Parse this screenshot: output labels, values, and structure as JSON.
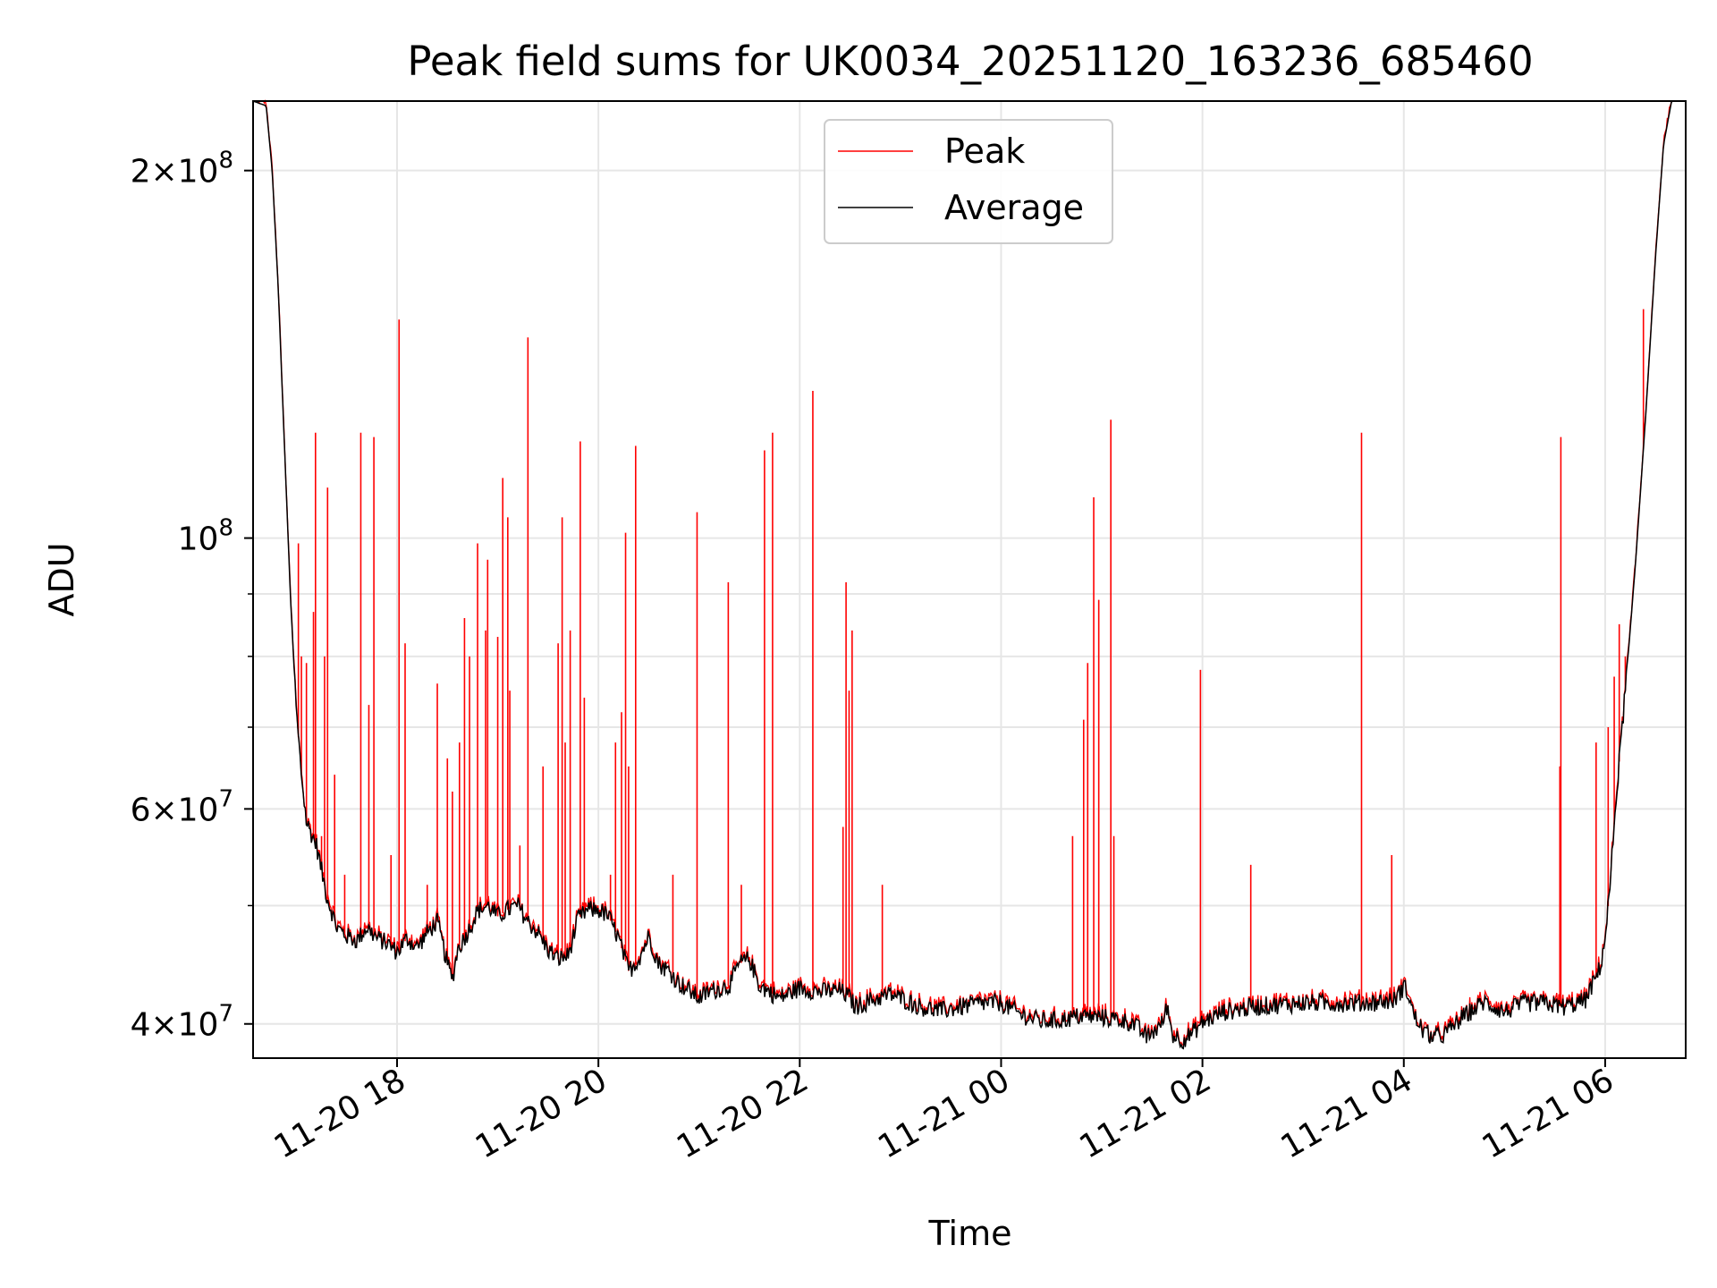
{
  "chart_data": {
    "type": "line",
    "title": "Peak field sums for UK0034_20251120_163236_685460",
    "xlabel": "Time",
    "ylabel": "ADU",
    "yscale": "log",
    "ylim": [
      37500000,
      228000000
    ],
    "xlim_hours": [
      16.57,
      30.8
    ],
    "x_unit": "hours since 2025-11-20 00:00",
    "grid": true,
    "legend": {
      "position": "top-center",
      "entries": [
        "Peak",
        "Average"
      ]
    },
    "colors": {
      "peak": "#ff0000",
      "average": "#000000",
      "grid": "#e6e6e6"
    },
    "xticks": [
      {
        "h": 18,
        "label": "11-20 18"
      },
      {
        "h": 20,
        "label": "11-20 20"
      },
      {
        "h": 22,
        "label": "11-20 22"
      },
      {
        "h": 24,
        "label": "11-21 00"
      },
      {
        "h": 26,
        "label": "11-21 02"
      },
      {
        "h": 28,
        "label": "11-21 04"
      },
      {
        "h": 30,
        "label": "11-21 06"
      }
    ],
    "yticks": [
      {
        "v": 40000000,
        "mant": "4",
        "exp": "7"
      },
      {
        "v": 60000000,
        "mant": "6",
        "exp": "7"
      },
      {
        "v": 100000000,
        "mant": "",
        "exp": "8"
      },
      {
        "v": 200000000,
        "mant": "2",
        "exp": "8"
      }
    ],
    "minor_yticks": [
      50000000,
      70000000,
      80000000,
      90000000
    ],
    "series": [
      {
        "name": "Average",
        "points": [
          [
            16.57,
            228000000
          ],
          [
            16.7,
            226000000
          ],
          [
            16.76,
            200000000
          ],
          [
            16.82,
            160000000
          ],
          [
            16.88,
            120000000
          ],
          [
            16.94,
            90000000
          ],
          [
            17.0,
            72000000
          ],
          [
            17.05,
            64000000
          ],
          [
            17.1,
            58500000
          ],
          [
            17.2,
            56000000
          ],
          [
            17.3,
            51000000
          ],
          [
            17.4,
            48000000
          ],
          [
            17.5,
            47200000
          ],
          [
            17.6,
            46800000
          ],
          [
            17.7,
            48000000
          ],
          [
            17.8,
            47000000
          ],
          [
            17.9,
            46600000
          ],
          [
            18.0,
            45800000
          ],
          [
            18.1,
            47000000
          ],
          [
            18.2,
            46200000
          ],
          [
            18.3,
            47500000
          ],
          [
            18.4,
            48500000
          ],
          [
            18.5,
            44800000
          ],
          [
            18.55,
            43500000
          ],
          [
            18.6,
            46000000
          ],
          [
            18.7,
            47500000
          ],
          [
            18.8,
            49500000
          ],
          [
            18.9,
            50000000
          ],
          [
            19.0,
            49000000
          ],
          [
            19.1,
            49600000
          ],
          [
            19.2,
            50000000
          ],
          [
            19.3,
            48500000
          ],
          [
            19.4,
            47500000
          ],
          [
            19.5,
            46000000
          ],
          [
            19.6,
            45200000
          ],
          [
            19.7,
            45500000
          ],
          [
            19.8,
            48800000
          ],
          [
            19.9,
            49600000
          ],
          [
            20.0,
            49600000
          ],
          [
            20.1,
            49000000
          ],
          [
            20.2,
            47000000
          ],
          [
            20.3,
            44200000
          ],
          [
            20.4,
            45200000
          ],
          [
            20.5,
            47200000
          ],
          [
            20.6,
            44800000
          ],
          [
            20.7,
            44200000
          ],
          [
            20.8,
            43200000
          ],
          [
            21.0,
            42000000
          ],
          [
            21.1,
            42500000
          ],
          [
            21.3,
            43000000
          ],
          [
            21.4,
            44800000
          ],
          [
            21.5,
            45200000
          ],
          [
            21.6,
            43000000
          ],
          [
            21.8,
            42000000
          ],
          [
            22.0,
            42800000
          ],
          [
            22.2,
            42500000
          ],
          [
            22.4,
            42600000
          ],
          [
            22.5,
            42000000
          ],
          [
            22.55,
            41300000
          ],
          [
            22.7,
            41800000
          ],
          [
            22.9,
            42300000
          ],
          [
            23.0,
            42000000
          ],
          [
            23.2,
            41300000
          ],
          [
            23.4,
            41000000
          ],
          [
            23.6,
            41300000
          ],
          [
            23.8,
            41600000
          ],
          [
            24.0,
            41600000
          ],
          [
            24.2,
            40700000
          ],
          [
            24.4,
            40200000
          ],
          [
            24.6,
            40300000
          ],
          [
            24.8,
            40600000
          ],
          [
            25.0,
            40500000
          ],
          [
            25.1,
            40400000
          ],
          [
            25.3,
            40100000
          ],
          [
            25.45,
            39000000
          ],
          [
            25.6,
            40000000
          ],
          [
            25.65,
            41400000
          ],
          [
            25.7,
            39200000
          ],
          [
            25.8,
            38800000
          ],
          [
            25.9,
            39300000
          ],
          [
            26.0,
            40100000
          ],
          [
            26.2,
            40900000
          ],
          [
            26.5,
            41300000
          ],
          [
            26.8,
            41500000
          ],
          [
            27.0,
            41600000
          ],
          [
            27.3,
            41600000
          ],
          [
            27.6,
            41600000
          ],
          [
            27.9,
            41800000
          ],
          [
            28.0,
            42900000
          ],
          [
            28.05,
            42300000
          ],
          [
            28.1,
            40600000
          ],
          [
            28.2,
            39400000
          ],
          [
            28.3,
            39000000
          ],
          [
            28.4,
            39200000
          ],
          [
            28.6,
            40600000
          ],
          [
            28.8,
            41700000
          ],
          [
            29.0,
            40900000
          ],
          [
            29.2,
            41600000
          ],
          [
            29.4,
            41600000
          ],
          [
            29.6,
            41300000
          ],
          [
            29.8,
            41800000
          ],
          [
            29.9,
            43500000
          ],
          [
            29.95,
            44500000
          ],
          [
            30.0,
            47000000
          ],
          [
            30.05,
            52000000
          ],
          [
            30.1,
            60000000
          ],
          [
            30.2,
            75000000
          ],
          [
            30.3,
            95000000
          ],
          [
            30.4,
            125000000
          ],
          [
            30.5,
            170000000
          ],
          [
            30.58,
            210000000
          ],
          [
            30.66,
            228000000
          ],
          [
            30.8,
            228000000
          ]
        ]
      },
      {
        "name": "Peak",
        "spikes": [
          [
            17.02,
            99000000
          ],
          [
            17.05,
            80000000
          ],
          [
            17.1,
            79000000
          ],
          [
            17.17,
            87000000
          ],
          [
            17.19,
            122000000
          ],
          [
            17.25,
            57000000
          ],
          [
            17.28,
            80000000
          ],
          [
            17.31,
            110000000
          ],
          [
            17.38,
            64000000
          ],
          [
            17.48,
            53000000
          ],
          [
            17.64,
            122000000
          ],
          [
            17.72,
            73000000
          ],
          [
            17.77,
            121000000
          ],
          [
            17.94,
            55000000
          ],
          [
            18.02,
            151000000
          ],
          [
            18.08,
            82000000
          ],
          [
            18.3,
            52000000
          ],
          [
            18.4,
            76000000
          ],
          [
            18.5,
            66000000
          ],
          [
            18.55,
            62000000
          ],
          [
            18.62,
            68000000
          ],
          [
            18.67,
            86000000
          ],
          [
            18.72,
            80000000
          ],
          [
            18.8,
            99000000
          ],
          [
            18.88,
            84000000
          ],
          [
            18.9,
            96000000
          ],
          [
            19.0,
            83000000
          ],
          [
            19.05,
            112000000
          ],
          [
            19.1,
            104000000
          ],
          [
            19.12,
            75000000
          ],
          [
            19.22,
            56000000
          ],
          [
            19.3,
            146000000
          ],
          [
            19.45,
            65000000
          ],
          [
            19.6,
            82000000
          ],
          [
            19.64,
            104000000
          ],
          [
            19.67,
            68000000
          ],
          [
            19.72,
            84000000
          ],
          [
            19.82,
            120000000
          ],
          [
            19.86,
            74000000
          ],
          [
            20.12,
            53000000
          ],
          [
            20.17,
            68000000
          ],
          [
            20.23,
            72000000
          ],
          [
            20.27,
            101000000
          ],
          [
            20.3,
            65000000
          ],
          [
            20.37,
            119000000
          ],
          [
            20.74,
            53000000
          ],
          [
            20.98,
            105000000
          ],
          [
            21.29,
            92000000
          ],
          [
            21.42,
            52000000
          ],
          [
            21.65,
            118000000
          ],
          [
            21.73,
            122000000
          ],
          [
            22.13,
            132000000
          ],
          [
            22.43,
            58000000
          ],
          [
            22.46,
            92000000
          ],
          [
            22.49,
            75000000
          ],
          [
            22.52,
            84000000
          ],
          [
            22.82,
            52000000
          ],
          [
            24.71,
            57000000
          ],
          [
            24.82,
            71000000
          ],
          [
            24.86,
            79000000
          ],
          [
            24.92,
            108000000
          ],
          [
            24.97,
            89000000
          ],
          [
            25.09,
            125000000
          ],
          [
            25.12,
            57000000
          ],
          [
            25.98,
            78000000
          ],
          [
            26.48,
            54000000
          ],
          [
            27.58,
            122000000
          ],
          [
            27.88,
            55000000
          ],
          [
            29.55,
            65000000
          ],
          [
            29.56,
            121000000
          ],
          [
            29.91,
            68000000
          ],
          [
            30.03,
            70000000
          ],
          [
            30.09,
            77000000
          ],
          [
            30.14,
            85000000
          ],
          [
            30.2,
            80000000
          ],
          [
            30.38,
            154000000
          ]
        ]
      }
    ]
  }
}
